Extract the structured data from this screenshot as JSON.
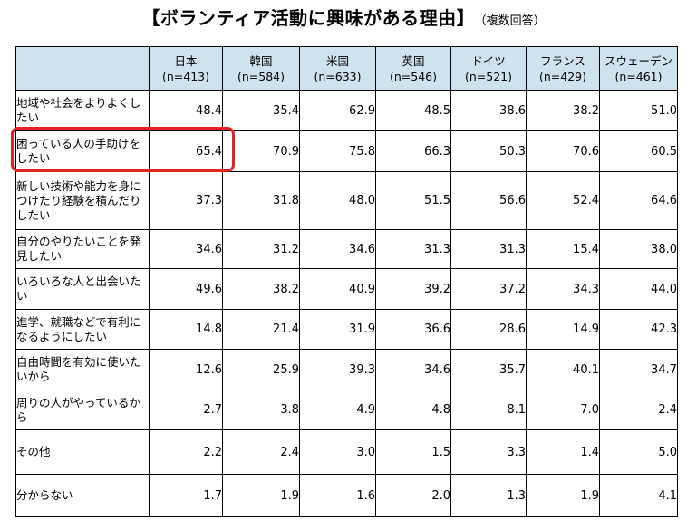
{
  "title": {
    "main": "【ボランティア活動に興味がある理由】",
    "sub": "（複数回答）"
  },
  "table": {
    "columns": [
      {
        "name": "日本",
        "n": "(n=413)"
      },
      {
        "name": "韓国",
        "n": "(n=584)"
      },
      {
        "name": "米国",
        "n": "(n=633)"
      },
      {
        "name": "英国",
        "n": "(n=546)"
      },
      {
        "name": "ドイツ",
        "n": "(n=521)"
      },
      {
        "name": "フランス",
        "n": "(n=429)"
      },
      {
        "name": "スウェーデン",
        "n": "(n=461)"
      }
    ],
    "rows": [
      {
        "label": "地域や社会をよりよくしたい",
        "values": [
          "48.4",
          "35.4",
          "62.9",
          "48.5",
          "38.6",
          "38.2",
          "51.0"
        ]
      },
      {
        "label": "困っている人の手助けをしたい",
        "values": [
          "65.4",
          "70.9",
          "75.8",
          "66.3",
          "50.3",
          "70.6",
          "60.5"
        ],
        "highlighted": true
      },
      {
        "label": "新しい技術や能力を身につけたり経験を積んだりしたい",
        "values": [
          "37.3",
          "31.8",
          "48.0",
          "51.5",
          "56.6",
          "52.4",
          "64.6"
        ]
      },
      {
        "label": "自分のやりたいことを発見したい",
        "values": [
          "34.6",
          "31.2",
          "34.6",
          "31.3",
          "31.3",
          "15.4",
          "38.0"
        ]
      },
      {
        "label": "いろいろな人と出会いたい",
        "values": [
          "49.6",
          "38.2",
          "40.9",
          "39.2",
          "37.2",
          "34.3",
          "44.0"
        ]
      },
      {
        "label": "進学、就職などで有利になるようにしたい",
        "values": [
          "14.8",
          "21.4",
          "31.9",
          "36.6",
          "28.6",
          "14.9",
          "42.3"
        ]
      },
      {
        "label": "自由時間を有効に使いたいから",
        "values": [
          "12.6",
          "25.9",
          "39.3",
          "34.6",
          "35.7",
          "40.1",
          "34.7"
        ]
      },
      {
        "label": "周りの人がやっているから",
        "values": [
          "2.7",
          "3.8",
          "4.9",
          "4.8",
          "8.1",
          "7.0",
          "2.4"
        ]
      },
      {
        "label": "その他",
        "values": [
          "2.2",
          "2.4",
          "3.0",
          "1.5",
          "3.3",
          "1.4",
          "5.0"
        ]
      },
      {
        "label": "分からない",
        "values": [
          "1.7",
          "1.9",
          "1.6",
          "2.0",
          "1.3",
          "1.9",
          "4.1"
        ]
      }
    ]
  },
  "colors": {
    "header_bg": "#cfe3ef",
    "highlight": "#e32222"
  }
}
